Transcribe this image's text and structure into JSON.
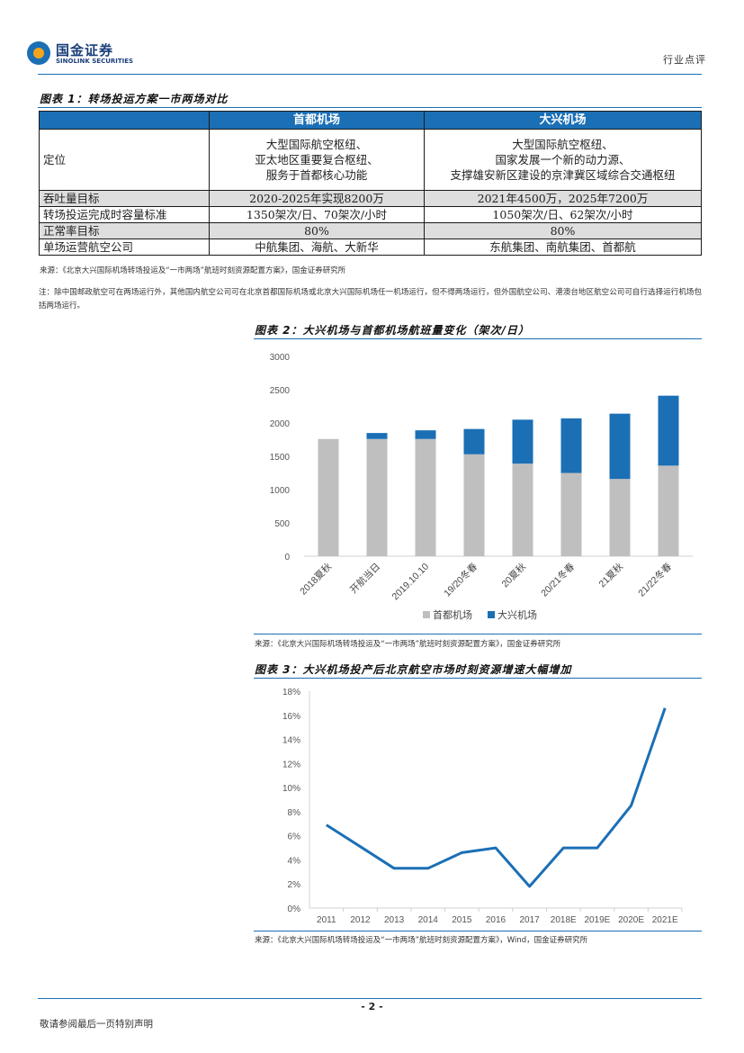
{
  "header": {
    "logo_cn": "国金证券",
    "logo_en": "SINOLINK SECURITIES",
    "report_type": "行业点评"
  },
  "table": {
    "title": "图表 1：转场投运方案一市两场对比",
    "columns": [
      "",
      "首都机场",
      "大兴机场"
    ],
    "rows": [
      {
        "label": "定位",
        "capital": [
          "大型国际航空枢纽、",
          "亚太地区重要复合枢纽、",
          "服务于首都核心功能"
        ],
        "daxing": [
          "大型国际航空枢纽、",
          "国家发展一个新的动力源、",
          "支撑雄安新区建设的京津冀区域综合交通枢纽"
        ]
      },
      {
        "label": "吞吐量目标",
        "capital": [
          "2020-2025年实现8200万"
        ],
        "daxing": [
          "2021年4500万，2025年7200万"
        ]
      },
      {
        "label": "转场投运完成时容量标准",
        "capital": [
          "1350架次/日、70架次/小时"
        ],
        "daxing": [
          "1050架次/日、62架次/小时"
        ]
      },
      {
        "label": "正常率目标",
        "capital": [
          "80%"
        ],
        "daxing": [
          "80%"
        ]
      },
      {
        "label": "单场运营航空公司",
        "capital": [
          "中航集团、海航、大新华"
        ],
        "daxing": [
          "东航集团、南航集团、首都航"
        ]
      }
    ],
    "source": "来源：《北京大兴国际机场转场投运及“一市两场”航班时刻资源配置方案》，国金证券研究所",
    "note": "注：除中国邮政航空可在两场运行外，其他国内航空公司可在北京首都国际机场或北京大兴国际机场任一机场运行，但不得两场运行，但外国航空公司、港澳台地区航空公司可自行选择运行机场包括两场运行。"
  },
  "chart_data": [
    {
      "type": "bar",
      "title": "图表 2：大兴机场与首都机场航班量变化（架次/日）",
      "stacked": true,
      "categories": [
        "2018夏秋",
        "开航当日",
        "2019.10.10",
        "19/20冬春",
        "20夏秋",
        "20/21冬春",
        "21夏秋",
        "21/22冬春"
      ],
      "series": [
        {
          "name": "首都机场",
          "color": "#bfbfbf",
          "values": [
            1760,
            1760,
            1760,
            1530,
            1390,
            1250,
            1160,
            1360
          ]
        },
        {
          "name": "大兴机场",
          "color": "#1b6fb5",
          "values": [
            0,
            90,
            130,
            380,
            660,
            820,
            980,
            1050
          ]
        }
      ],
      "ylim": [
        0,
        3000
      ],
      "yticks": [
        0,
        500,
        1000,
        1500,
        2000,
        2500,
        3000
      ],
      "legend": "bottom",
      "grid": false,
      "source": "来源：《北京大兴国际机场转场投运及“一市两场”航班时刻资源配置方案》，国金证券研究所"
    },
    {
      "type": "line",
      "title": "图表 3：大兴机场投产后北京航空市场时刻资源增速大幅增加",
      "x": [
        "2011",
        "2012",
        "2013",
        "2014",
        "2015",
        "2016",
        "2017",
        "2018E",
        "2019E",
        "2020E",
        "2021E"
      ],
      "series": [
        {
          "color": "#1b6fb5",
          "values": [
            6.9,
            5.1,
            3.3,
            3.3,
            4.6,
            5.0,
            1.8,
            5.0,
            5.0,
            8.5,
            16.6
          ]
        }
      ],
      "ylim": [
        0,
        18
      ],
      "yticks": [
        "0%",
        "2%",
        "4%",
        "6%",
        "8%",
        "10%",
        "12%",
        "14%",
        "16%",
        "18%"
      ],
      "grid": false,
      "source": "来源：《北京大兴国际机场转场投运及“一市两场”航班时刻资源配置方案》，Wind，国金证券研究所"
    }
  ],
  "footer": {
    "page": "- 2 -",
    "disclaimer": "敬请参阅最后一页特别声明"
  }
}
